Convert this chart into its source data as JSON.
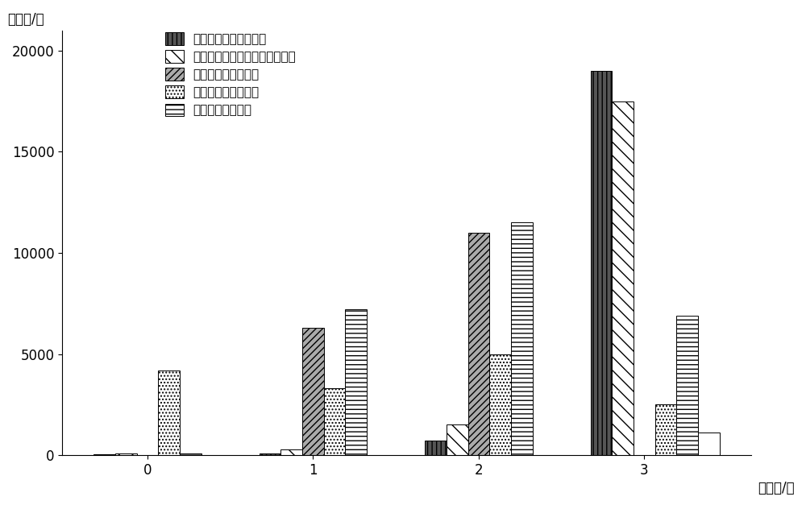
{
  "categories": [
    "0",
    "1",
    "2",
    "3"
  ],
  "series": [
    {
      "label": "理论最优功率分配方式",
      "values": [
        50,
        100,
        700,
        19000
      ],
      "hatch": "|||",
      "facecolor": "#555555",
      "edgecolor": "#000000"
    },
    {
      "label": "基于路径损耗部分补偿分配方式",
      "values": [
        100,
        300,
        1500,
        17500
      ],
      "hatch": "\\\\",
      "facecolor": "#ffffff",
      "edgecolor": "#000000"
    },
    {
      "label": "等功率发射分配方式",
      "values": [
        0,
        6300,
        11000,
        0
      ],
      "hatch": "////",
      "facecolor": "#aaaaaa",
      "edgecolor": "#000000"
    },
    {
      "label": "等功率接收分配方式",
      "values": [
        4200,
        3300,
        5000,
        2500
      ],
      "hatch": "....",
      "facecolor": "#ffffff",
      "edgecolor": "#000000"
    },
    {
      "label": "随机功率分配方式",
      "values": [
        100,
        7200,
        11500,
        6900
      ],
      "hatch": "---",
      "facecolor": "#ffffff",
      "edgecolor": "#000000"
    }
  ],
  "extra_series": {
    "label": "",
    "values": [
      0,
      0,
      0,
      1100
    ],
    "hatch": "===",
    "facecolor": "#ffffff",
    "edgecolor": "#000000"
  },
  "ylabel": "样本数/个",
  "xlabel": "用户数/个",
  "ylim": [
    0,
    21000
  ],
  "yticks": [
    0,
    5000,
    10000,
    15000,
    20000
  ],
  "bar_width": 0.13,
  "background_color": "#ffffff",
  "legend_fontsize": 11,
  "axis_fontsize": 12
}
